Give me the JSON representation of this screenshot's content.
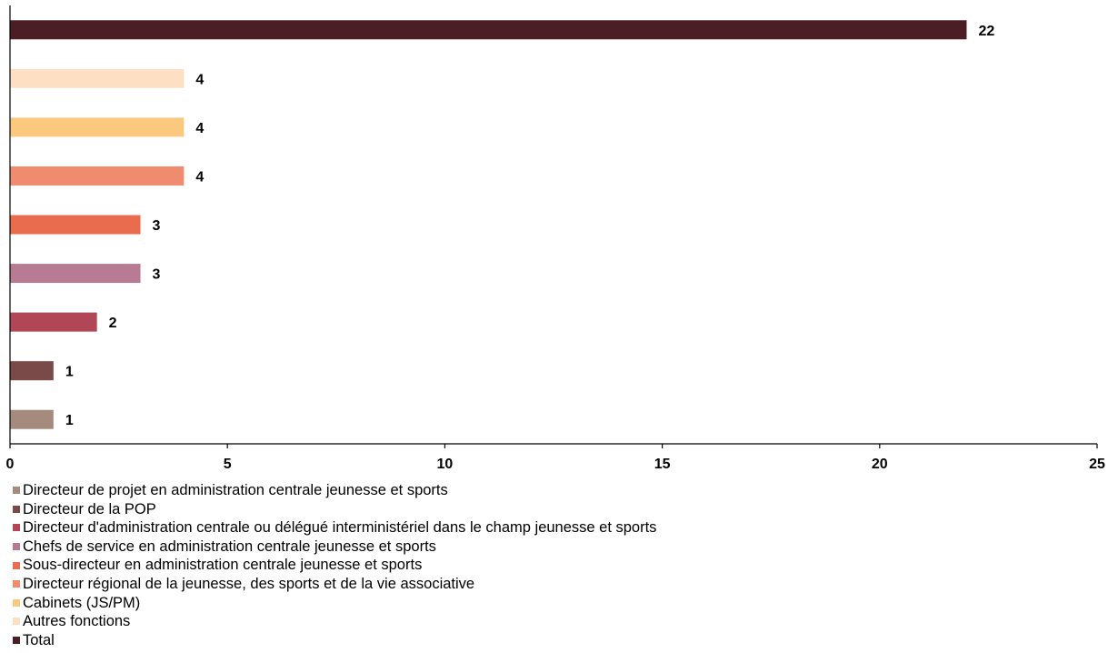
{
  "chart_data": {
    "type": "bar",
    "orientation": "horizontal",
    "categories": [
      "Directeur de projet en administration centrale jeunesse et sports",
      "Directeur de la POP",
      "Directeur d'administration centrale ou délégué interministériel dans le champ jeunesse et sports",
      "Chefs de service en administration centrale jeunesse et sports",
      "Sous-directeur en administration centrale jeunesse et sports",
      "Directeur régional de la jeunesse, des sports et de la vie associative",
      "Cabinets (JS/PM)",
      "Autres fonctions",
      "Total"
    ],
    "values": [
      1,
      1,
      2,
      3,
      3,
      4,
      4,
      4,
      22
    ],
    "data_labels": [
      "1",
      "1",
      "2",
      "3",
      "3",
      "4",
      "4",
      "4",
      "22"
    ],
    "colors": [
      "#a58a7e",
      "#7a4a48",
      "#b04656",
      "#b87b94",
      "#e86c4d",
      "#ef8b6e",
      "#fbc97d",
      "#fde0c4",
      "#4b1d25"
    ],
    "xlim": [
      0,
      25
    ],
    "xticks": [
      "0",
      "5",
      "10",
      "15",
      "20",
      "25"
    ],
    "title": "",
    "xlabel": "",
    "ylabel": "",
    "grid": false,
    "legend_position": "bottom-left"
  }
}
